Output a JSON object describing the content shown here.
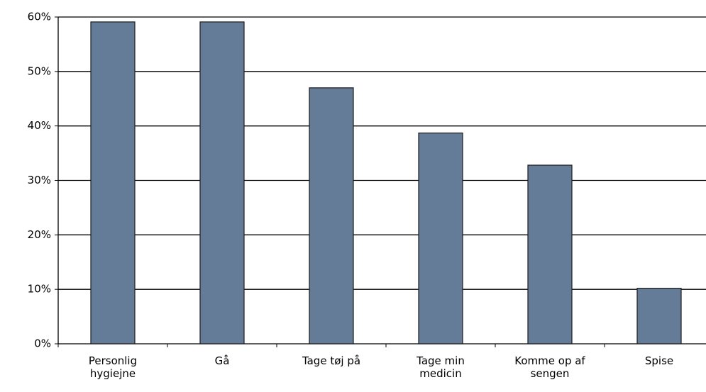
{
  "chart_data": {
    "type": "bar",
    "categories": [
      "Personlig hygiejne",
      "Gå",
      "Tage tøj på",
      "Tage min medicin",
      "Komme op af sengen",
      "Spise"
    ],
    "values": [
      59.1,
      59.1,
      47,
      38.7,
      32.8,
      10.2
    ],
    "color": "#647c98",
    "ylim": [
      0,
      60
    ],
    "yticks": [
      {
        "value": 0,
        "label": "0%"
      },
      {
        "value": 10,
        "label": "10%"
      },
      {
        "value": 20,
        "label": "20%"
      },
      {
        "value": 30,
        "label": "30%"
      },
      {
        "value": 40,
        "label": "40%"
      },
      {
        "value": 50,
        "label": "50%"
      },
      {
        "value": 60,
        "label": "60%"
      }
    ],
    "grid": true
  }
}
